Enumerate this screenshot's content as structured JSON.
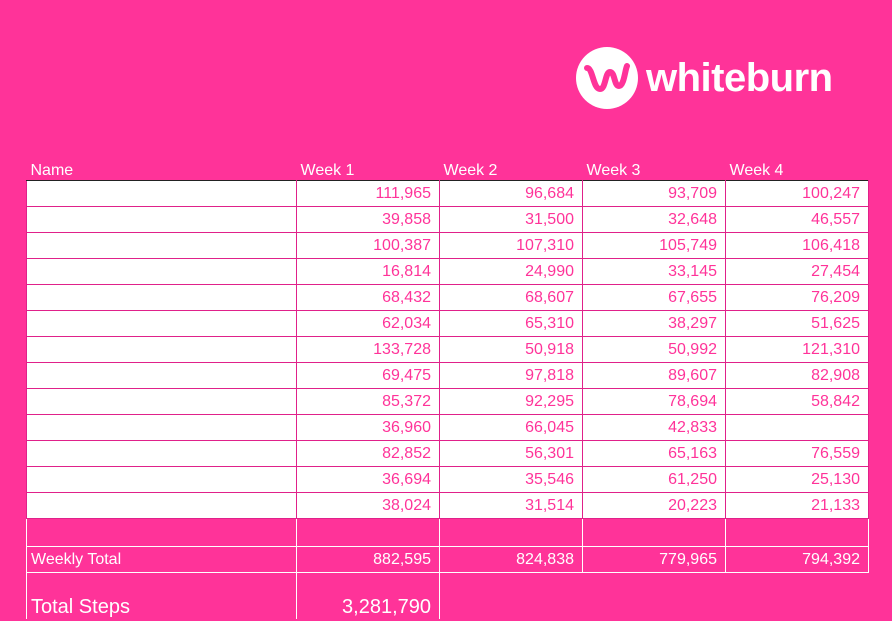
{
  "brand": {
    "logo_text": "whiteburn",
    "icon": "whiteburn-wave-logo"
  },
  "colors": {
    "background": "#ff3399",
    "cell_text": "#ff3399",
    "cell_background": "#ffffff"
  },
  "headers": [
    "Name",
    "Week 1",
    "Week 2",
    "Week 3",
    "Week 4"
  ],
  "rows": [
    {
      "name": "",
      "w1": "111,965",
      "w2": "96,684",
      "w3": "93,709",
      "w4": "100,247"
    },
    {
      "name": "",
      "w1": "39,858",
      "w2": "31,500",
      "w3": "32,648",
      "w4": "46,557"
    },
    {
      "name": "",
      "w1": "100,387",
      "w2": "107,310",
      "w3": "105,749",
      "w4": "106,418"
    },
    {
      "name": "",
      "w1": "16,814",
      "w2": "24,990",
      "w3": "33,145",
      "w4": "27,454"
    },
    {
      "name": "",
      "w1": "68,432",
      "w2": "68,607",
      "w3": "67,655",
      "w4": "76,209"
    },
    {
      "name": "",
      "w1": "62,034",
      "w2": "65,310",
      "w3": "38,297",
      "w4": "51,625"
    },
    {
      "name": "",
      "w1": "133,728",
      "w2": "50,918",
      "w3": "50,992",
      "w4": "121,310"
    },
    {
      "name": "",
      "w1": "69,475",
      "w2": "97,818",
      "w3": "89,607",
      "w4": "82,908"
    },
    {
      "name": "",
      "w1": "85,372",
      "w2": "92,295",
      "w3": "78,694",
      "w4": "58,842"
    },
    {
      "name": "",
      "w1": "36,960",
      "w2": "66,045",
      "w3": "42,833",
      "w4": ""
    },
    {
      "name": "",
      "w1": "82,852",
      "w2": "56,301",
      "w3": "65,163",
      "w4": "76,559"
    },
    {
      "name": "",
      "w1": "36,694",
      "w2": "35,546",
      "w3": "61,250",
      "w4": "25,130"
    },
    {
      "name": "",
      "w1": "38,024",
      "w2": "31,514",
      "w3": "20,223",
      "w4": "21,133"
    }
  ],
  "weekly_total": {
    "label": "Weekly Total",
    "w1": "882,595",
    "w2": "824,838",
    "w3": "779,965",
    "w4": "794,392"
  },
  "grand_total": {
    "label": "Total Steps",
    "value": "3,281,790"
  }
}
